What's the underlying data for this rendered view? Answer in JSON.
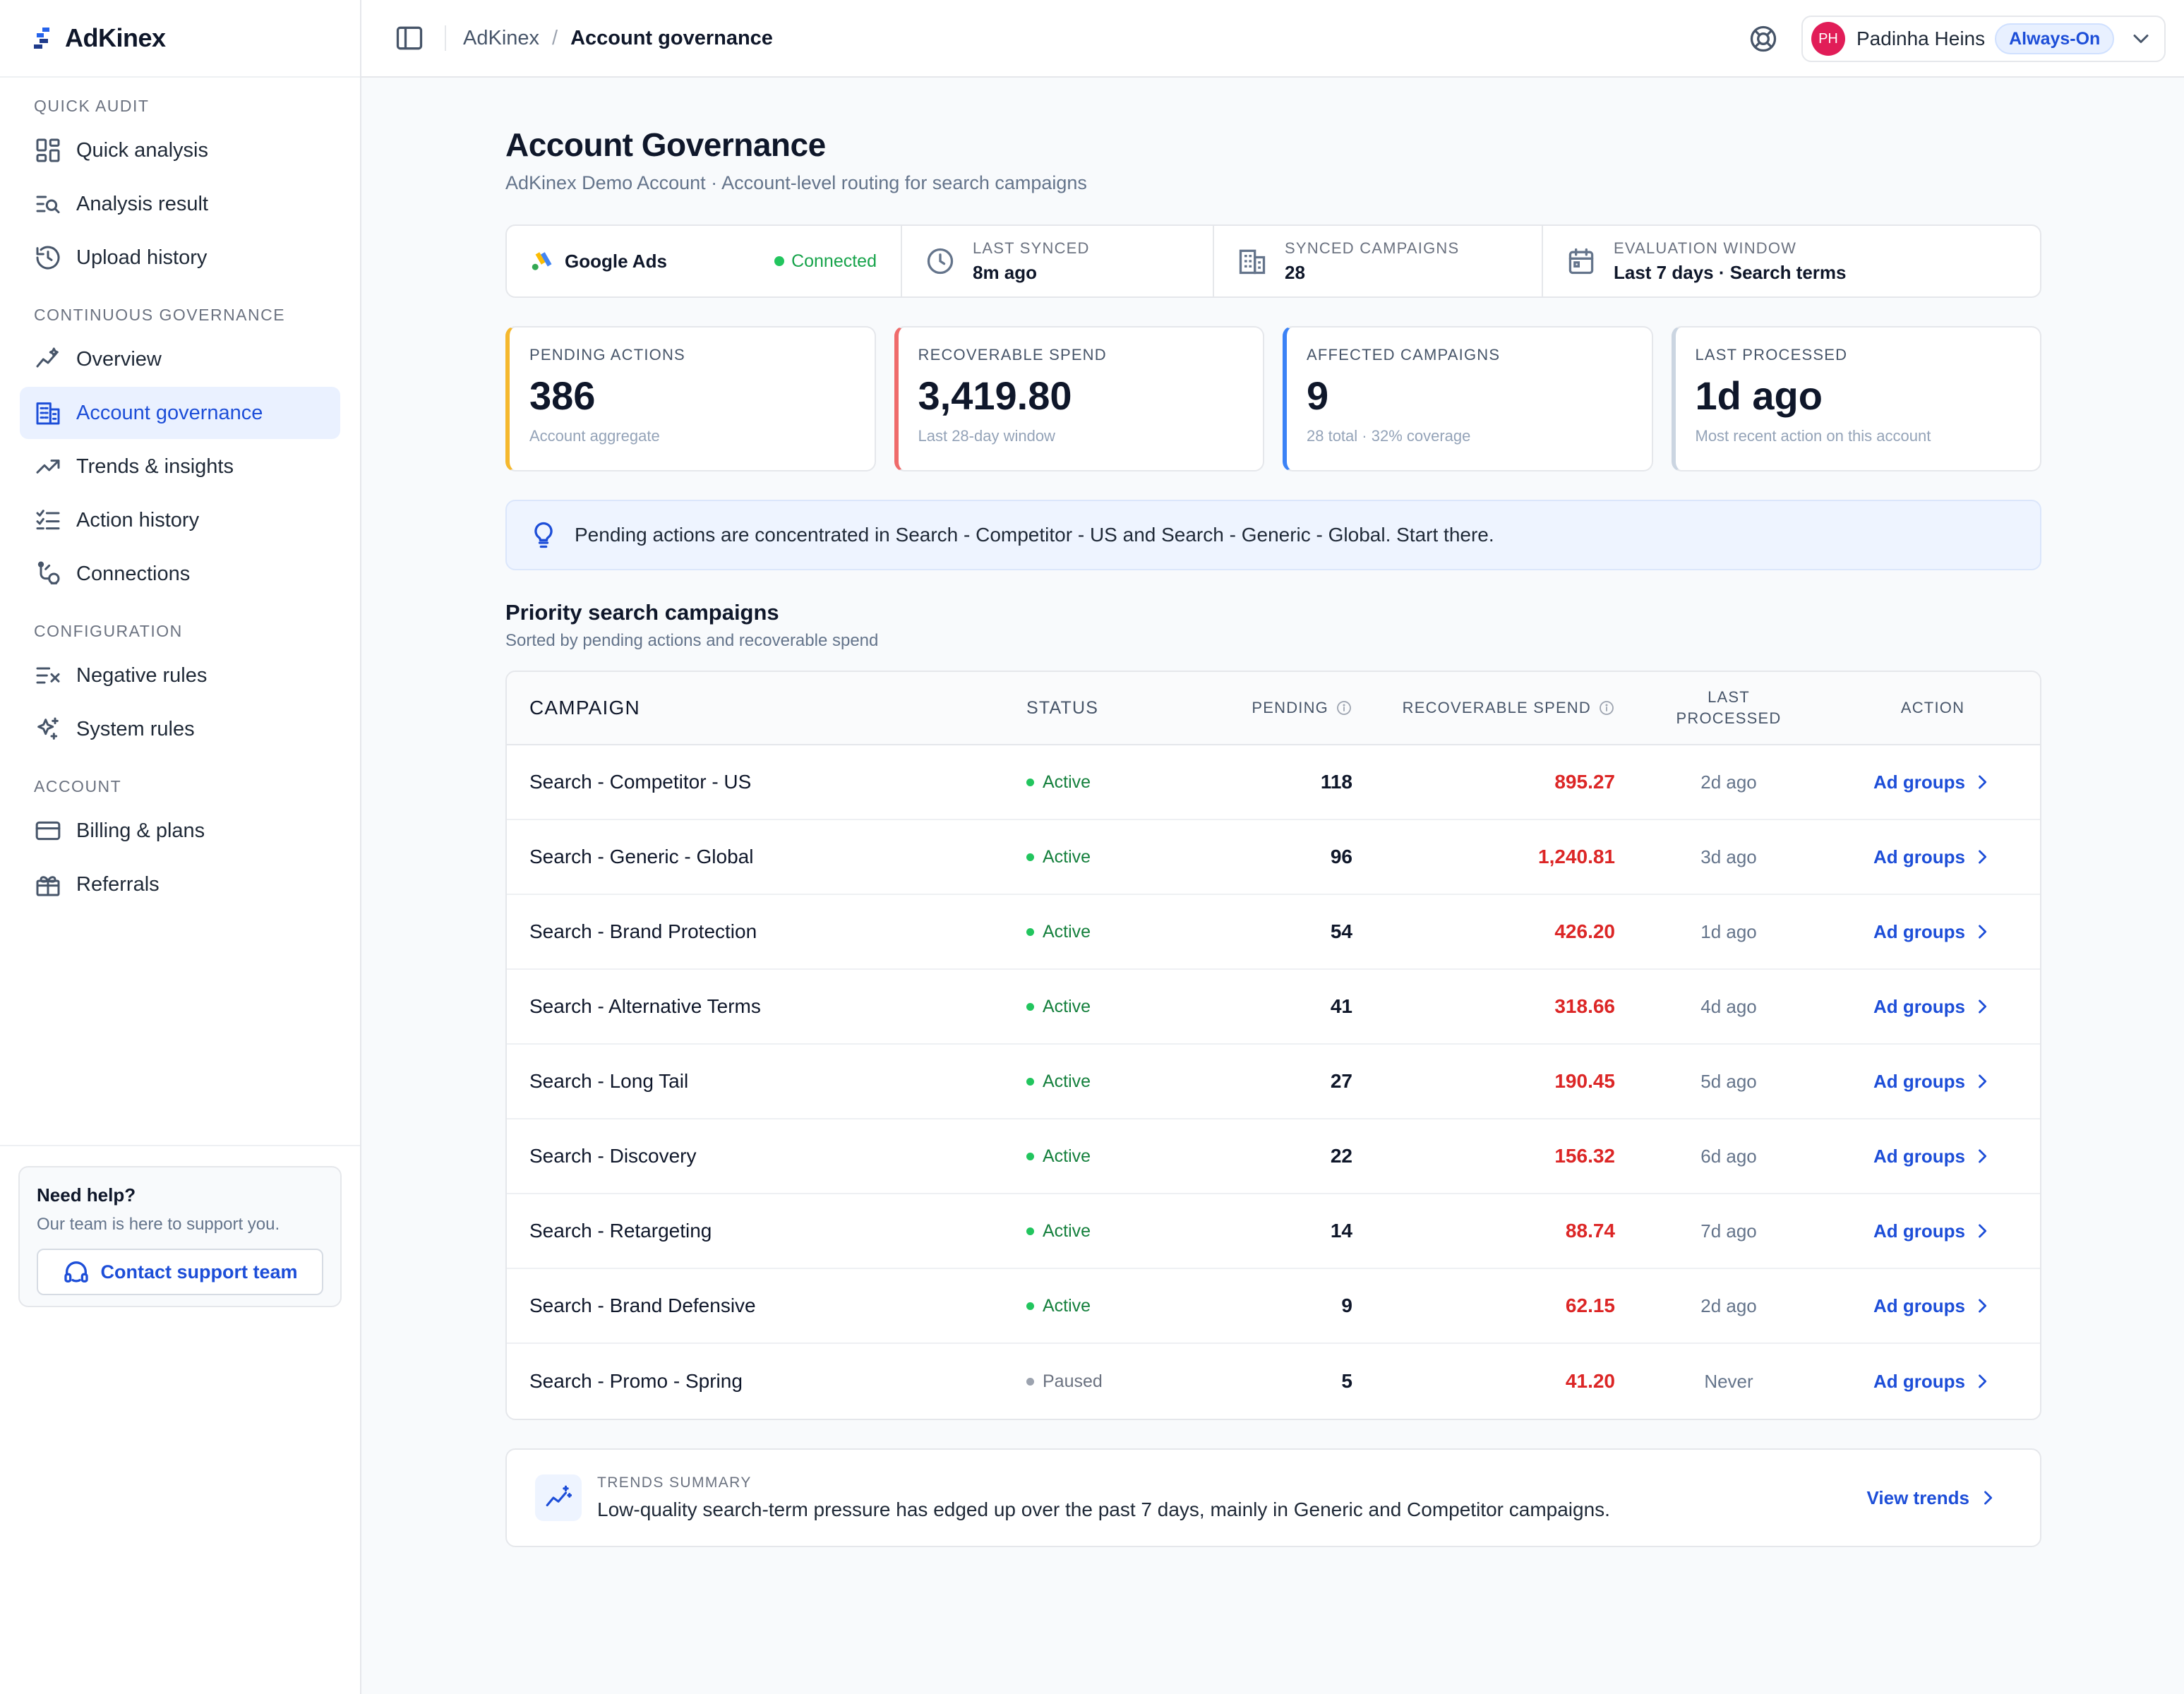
{
  "brand": {
    "name": "AdKinex"
  },
  "sidebar": {
    "sections": [
      {
        "title": "QUICK AUDIT",
        "items": [
          {
            "label": "Quick analysis",
            "icon": "dashboard-icon"
          },
          {
            "label": "Analysis result",
            "icon": "list-search-icon"
          },
          {
            "label": "Upload history",
            "icon": "history-icon"
          }
        ]
      },
      {
        "title": "CONTINUOUS GOVERNANCE",
        "items": [
          {
            "label": "Overview",
            "icon": "sparkline-icon"
          },
          {
            "label": "Account governance",
            "icon": "building-icon",
            "active": true
          },
          {
            "label": "Trends & insights",
            "icon": "trend-icon"
          },
          {
            "label": "Action history",
            "icon": "checklist-icon"
          },
          {
            "label": "Connections",
            "icon": "connections-icon"
          }
        ]
      },
      {
        "title": "CONFIGURATION",
        "items": [
          {
            "label": "Negative rules",
            "icon": "filter-x-icon"
          },
          {
            "label": "System rules",
            "icon": "sparkles-icon"
          }
        ]
      },
      {
        "title": "ACCOUNT",
        "items": [
          {
            "label": "Billing & plans",
            "icon": "credit-card-icon"
          },
          {
            "label": "Referrals",
            "icon": "gift-icon"
          }
        ]
      }
    ],
    "help": {
      "title": "Need help?",
      "subtitle": "Our team is here to support you.",
      "button": "Contact support team"
    }
  },
  "topbar": {
    "breadcrumb_root": "AdKinex",
    "breadcrumb_sep": "/",
    "breadcrumb_current": "Account governance",
    "user": {
      "initials": "PH",
      "name": "Padinha Heins",
      "plan": "Always-On"
    }
  },
  "page": {
    "title": "Account Governance",
    "subtitle": "AdKinex Demo Account · Account-level routing for search campaigns"
  },
  "connection": {
    "platform": "Google Ads",
    "status": "Connected",
    "last_synced_label": "LAST SYNCED",
    "last_synced_value": "8m ago",
    "synced_campaigns_label": "SYNCED CAMPAIGNS",
    "synced_campaigns_value": "28",
    "eval_label": "EVALUATION WINDOW",
    "eval_value": "Last 7 days · Search terms"
  },
  "stats": [
    {
      "label": "PENDING ACTIONS",
      "value": "386",
      "sub": "Account aggregate",
      "accent": "#f5b82e"
    },
    {
      "label": "RECOVERABLE SPEND",
      "value": "3,419.80",
      "sub": "Last 28-day window",
      "accent": "#ef6b6b"
    },
    {
      "label": "AFFECTED CAMPAIGNS",
      "value": "9",
      "sub": "28 total · 32% coverage",
      "accent": "#3b82f6"
    },
    {
      "label": "LAST PROCESSED",
      "value": "1d ago",
      "sub": "Most recent action on this account",
      "accent": "#cbd5e1"
    }
  ],
  "insight": "Pending actions are concentrated in Search - Competitor - US and Search - Generic - Global. Start there.",
  "campaigns": {
    "title": "Priority search campaigns",
    "subtitle": "Sorted by pending actions and recoverable spend",
    "headers": {
      "campaign": "CAMPAIGN",
      "status": "STATUS",
      "pending": "PENDING",
      "spend": "RECOVERABLE SPEND",
      "last_processed_1": "LAST",
      "last_processed_2": "PROCESSED",
      "action": "ACTION"
    },
    "rows": [
      {
        "name": "Search - Competitor - US",
        "status": "Active",
        "pending": "118",
        "spend": "895.27",
        "last": "2d ago",
        "action": "Ad groups"
      },
      {
        "name": "Search - Generic - Global",
        "status": "Active",
        "pending": "96",
        "spend": "1,240.81",
        "last": "3d ago",
        "action": "Ad groups"
      },
      {
        "name": "Search - Brand Protection",
        "status": "Active",
        "pending": "54",
        "spend": "426.20",
        "last": "1d ago",
        "action": "Ad groups"
      },
      {
        "name": "Search - Alternative Terms",
        "status": "Active",
        "pending": "41",
        "spend": "318.66",
        "last": "4d ago",
        "action": "Ad groups"
      },
      {
        "name": "Search - Long Tail",
        "status": "Active",
        "pending": "27",
        "spend": "190.45",
        "last": "5d ago",
        "action": "Ad groups"
      },
      {
        "name": "Search - Discovery",
        "status": "Active",
        "pending": "22",
        "spend": "156.32",
        "last": "6d ago",
        "action": "Ad groups"
      },
      {
        "name": "Search - Retargeting",
        "status": "Active",
        "pending": "14",
        "spend": "88.74",
        "last": "7d ago",
        "action": "Ad groups"
      },
      {
        "name": "Search - Brand Defensive",
        "status": "Active",
        "pending": "9",
        "spend": "62.15",
        "last": "2d ago",
        "action": "Ad groups"
      },
      {
        "name": "Search - Promo - Spring",
        "status": "Paused",
        "pending": "5",
        "spend": "41.20",
        "last": "Never",
        "action": "Ad groups"
      }
    ]
  },
  "trends_summary": {
    "label": "TRENDS SUMMARY",
    "text": "Low-quality search-term pressure has edged up over the past 7 days, mainly in Generic and Competitor campaigns.",
    "link": "View trends"
  }
}
